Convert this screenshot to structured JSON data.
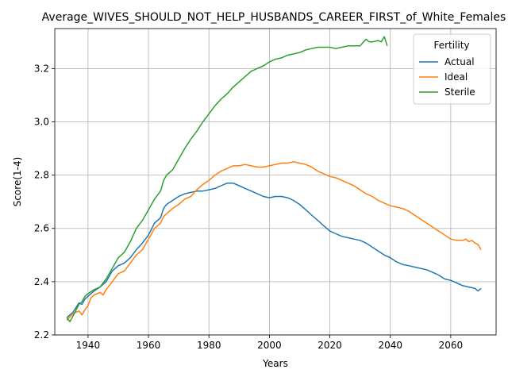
{
  "chart_data": {
    "type": "line",
    "title": "Average_WIVES_SHOULD_NOT_HELP_HUSBANDS_CAREER_FIRST_of_White_Females",
    "xlabel": "Years",
    "ylabel": "Score(1-4)",
    "xlim": [
      1929,
      2075
    ],
    "ylim": [
      2.2,
      3.35
    ],
    "x_ticks": [
      "1940",
      "1960",
      "1980",
      "2000",
      "2020",
      "2040",
      "2060"
    ],
    "y_ticks": [
      "2.2",
      "2.4",
      "2.6",
      "2.8",
      "3.0",
      "3.2"
    ],
    "grid": true,
    "legend": {
      "title": "Fertility",
      "placement": "top-right"
    },
    "series": [
      {
        "name": "Actual",
        "color": "#1f77b4",
        "points": [
          [
            1933,
            2.265
          ],
          [
            1935,
            2.285
          ],
          [
            1937,
            2.32
          ],
          [
            1938,
            2.315
          ],
          [
            1939,
            2.335
          ],
          [
            1940,
            2.345
          ],
          [
            1942,
            2.365
          ],
          [
            1944,
            2.38
          ],
          [
            1946,
            2.4
          ],
          [
            1948,
            2.44
          ],
          [
            1950,
            2.46
          ],
          [
            1952,
            2.47
          ],
          [
            1954,
            2.49
          ],
          [
            1956,
            2.52
          ],
          [
            1958,
            2.545
          ],
          [
            1960,
            2.575
          ],
          [
            1962,
            2.62
          ],
          [
            1964,
            2.64
          ],
          [
            1965,
            2.675
          ],
          [
            1966,
            2.69
          ],
          [
            1968,
            2.705
          ],
          [
            1970,
            2.72
          ],
          [
            1972,
            2.73
          ],
          [
            1974,
            2.735
          ],
          [
            1976,
            2.74
          ],
          [
            1978,
            2.74
          ],
          [
            1980,
            2.745
          ],
          [
            1982,
            2.75
          ],
          [
            1984,
            2.76
          ],
          [
            1986,
            2.77
          ],
          [
            1988,
            2.77
          ],
          [
            1990,
            2.76
          ],
          [
            1992,
            2.75
          ],
          [
            1994,
            2.74
          ],
          [
            1996,
            2.73
          ],
          [
            1998,
            2.72
          ],
          [
            2000,
            2.715
          ],
          [
            2002,
            2.72
          ],
          [
            2004,
            2.72
          ],
          [
            2006,
            2.715
          ],
          [
            2008,
            2.705
          ],
          [
            2010,
            2.69
          ],
          [
            2012,
            2.67
          ],
          [
            2014,
            2.65
          ],
          [
            2016,
            2.63
          ],
          [
            2018,
            2.61
          ],
          [
            2020,
            2.59
          ],
          [
            2022,
            2.58
          ],
          [
            2024,
            2.57
          ],
          [
            2026,
            2.565
          ],
          [
            2028,
            2.56
          ],
          [
            2030,
            2.555
          ],
          [
            2032,
            2.545
          ],
          [
            2034,
            2.53
          ],
          [
            2036,
            2.515
          ],
          [
            2038,
            2.5
          ],
          [
            2040,
            2.49
          ],
          [
            2042,
            2.475
          ],
          [
            2044,
            2.465
          ],
          [
            2046,
            2.46
          ],
          [
            2048,
            2.455
          ],
          [
            2050,
            2.45
          ],
          [
            2052,
            2.445
          ],
          [
            2054,
            2.435
          ],
          [
            2056,
            2.425
          ],
          [
            2058,
            2.41
          ],
          [
            2060,
            2.405
          ],
          [
            2062,
            2.395
          ],
          [
            2064,
            2.385
          ],
          [
            2066,
            2.38
          ],
          [
            2068,
            2.375
          ],
          [
            2069,
            2.365
          ],
          [
            2070,
            2.375
          ]
        ]
      },
      {
        "name": "Ideal",
        "color": "#ff7f0e",
        "points": [
          [
            1933,
            2.255
          ],
          [
            1935,
            2.28
          ],
          [
            1937,
            2.29
          ],
          [
            1938,
            2.275
          ],
          [
            1939,
            2.295
          ],
          [
            1940,
            2.31
          ],
          [
            1941,
            2.34
          ],
          [
            1942,
            2.35
          ],
          [
            1944,
            2.36
          ],
          [
            1945,
            2.35
          ],
          [
            1946,
            2.37
          ],
          [
            1948,
            2.4
          ],
          [
            1950,
            2.43
          ],
          [
            1952,
            2.44
          ],
          [
            1954,
            2.47
          ],
          [
            1956,
            2.5
          ],
          [
            1958,
            2.52
          ],
          [
            1960,
            2.56
          ],
          [
            1962,
            2.6
          ],
          [
            1964,
            2.62
          ],
          [
            1965,
            2.645
          ],
          [
            1966,
            2.655
          ],
          [
            1968,
            2.675
          ],
          [
            1970,
            2.69
          ],
          [
            1972,
            2.71
          ],
          [
            1974,
            2.72
          ],
          [
            1976,
            2.745
          ],
          [
            1978,
            2.765
          ],
          [
            1980,
            2.78
          ],
          [
            1982,
            2.8
          ],
          [
            1984,
            2.815
          ],
          [
            1986,
            2.825
          ],
          [
            1988,
            2.835
          ],
          [
            1990,
            2.835
          ],
          [
            1992,
            2.84
          ],
          [
            1994,
            2.835
          ],
          [
            1996,
            2.83
          ],
          [
            1998,
            2.83
          ],
          [
            2000,
            2.835
          ],
          [
            2002,
            2.84
          ],
          [
            2004,
            2.845
          ],
          [
            2006,
            2.845
          ],
          [
            2008,
            2.85
          ],
          [
            2010,
            2.845
          ],
          [
            2012,
            2.84
          ],
          [
            2014,
            2.83
          ],
          [
            2016,
            2.815
          ],
          [
            2018,
            2.805
          ],
          [
            2020,
            2.795
          ],
          [
            2022,
            2.79
          ],
          [
            2024,
            2.78
          ],
          [
            2026,
            2.77
          ],
          [
            2028,
            2.76
          ],
          [
            2030,
            2.745
          ],
          [
            2032,
            2.73
          ],
          [
            2034,
            2.72
          ],
          [
            2036,
            2.705
          ],
          [
            2038,
            2.695
          ],
          [
            2040,
            2.685
          ],
          [
            2042,
            2.68
          ],
          [
            2044,
            2.675
          ],
          [
            2046,
            2.665
          ],
          [
            2048,
            2.65
          ],
          [
            2050,
            2.635
          ],
          [
            2052,
            2.62
          ],
          [
            2054,
            2.605
          ],
          [
            2056,
            2.59
          ],
          [
            2058,
            2.575
          ],
          [
            2060,
            2.56
          ],
          [
            2062,
            2.555
          ],
          [
            2064,
            2.555
          ],
          [
            2065,
            2.56
          ],
          [
            2066,
            2.55
          ],
          [
            2067,
            2.555
          ],
          [
            2068,
            2.545
          ],
          [
            2069,
            2.54
          ],
          [
            2070,
            2.52
          ]
        ]
      },
      {
        "name": "Sterile",
        "color": "#2ca02c",
        "points": [
          [
            1933,
            2.265
          ],
          [
            1934,
            2.25
          ],
          [
            1935,
            2.27
          ],
          [
            1937,
            2.315
          ],
          [
            1938,
            2.325
          ],
          [
            1939,
            2.345
          ],
          [
            1940,
            2.355
          ],
          [
            1942,
            2.37
          ],
          [
            1944,
            2.38
          ],
          [
            1946,
            2.41
          ],
          [
            1948,
            2.45
          ],
          [
            1950,
            2.49
          ],
          [
            1952,
            2.51
          ],
          [
            1954,
            2.55
          ],
          [
            1956,
            2.6
          ],
          [
            1958,
            2.63
          ],
          [
            1960,
            2.67
          ],
          [
            1962,
            2.71
          ],
          [
            1964,
            2.74
          ],
          [
            1965,
            2.78
          ],
          [
            1966,
            2.8
          ],
          [
            1968,
            2.82
          ],
          [
            1970,
            2.86
          ],
          [
            1972,
            2.9
          ],
          [
            1974,
            2.935
          ],
          [
            1976,
            2.965
          ],
          [
            1978,
            3.0
          ],
          [
            1980,
            3.03
          ],
          [
            1982,
            3.06
          ],
          [
            1984,
            3.085
          ],
          [
            1986,
            3.105
          ],
          [
            1988,
            3.13
          ],
          [
            1990,
            3.15
          ],
          [
            1992,
            3.17
          ],
          [
            1994,
            3.19
          ],
          [
            1996,
            3.2
          ],
          [
            1998,
            3.21
          ],
          [
            2000,
            3.225
          ],
          [
            2002,
            3.235
          ],
          [
            2004,
            3.24
          ],
          [
            2006,
            3.25
          ],
          [
            2008,
            3.255
          ],
          [
            2010,
            3.26
          ],
          [
            2012,
            3.27
          ],
          [
            2014,
            3.275
          ],
          [
            2016,
            3.28
          ],
          [
            2018,
            3.28
          ],
          [
            2020,
            3.28
          ],
          [
            2022,
            3.275
          ],
          [
            2024,
            3.28
          ],
          [
            2026,
            3.285
          ],
          [
            2028,
            3.285
          ],
          [
            2030,
            3.285
          ],
          [
            2032,
            3.31
          ],
          [
            2033,
            3.3
          ],
          [
            2034,
            3.3
          ],
          [
            2036,
            3.305
          ],
          [
            2037,
            3.3
          ],
          [
            2038,
            3.32
          ],
          [
            2039,
            3.285
          ]
        ]
      }
    ]
  }
}
